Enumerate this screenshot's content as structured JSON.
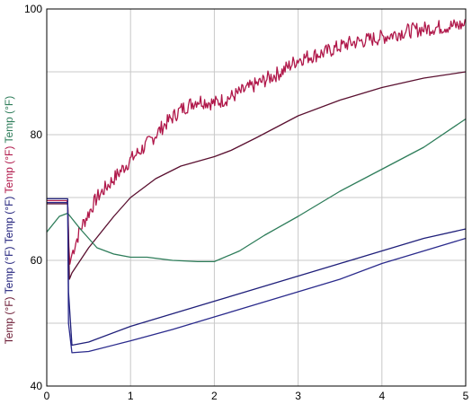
{
  "chart_data": {
    "type": "line",
    "xlim": [
      0,
      5
    ],
    "ylim": [
      40,
      100
    ],
    "x_ticks": [
      "0",
      "1",
      "2",
      "3",
      "4",
      "5"
    ],
    "y_ticks": [
      "40",
      "60",
      "80",
      "100"
    ],
    "grid": true,
    "legend": "none",
    "y_axis_labels": [
      {
        "text": "Temp (°F)",
        "color": "#6b1a33"
      },
      {
        "text": "Temp (°F)",
        "color": "#1f1f7a"
      },
      {
        "text": "Temp (°F)",
        "color": "#1f1f7a"
      },
      {
        "text": "Temp (°F)",
        "color": "#b0184a"
      },
      {
        "text": "Temp (°F)",
        "color": "#2e7d5a"
      }
    ],
    "series": [
      {
        "color": "#b0184a",
        "noisy": true,
        "x": [
          0,
          0.25,
          0.27,
          0.3,
          0.4,
          0.6,
          0.8,
          1.0,
          1.2,
          1.4,
          1.6,
          1.8,
          2.0,
          2.2,
          2.5,
          2.8,
          3.0,
          3.3,
          3.6,
          4.0,
          4.3,
          4.6,
          5.0
        ],
        "y": [
          69.5,
          69.5,
          59.0,
          61.0,
          65.0,
          70.0,
          73.0,
          76.0,
          78.5,
          81.5,
          84.0,
          85.5,
          85.0,
          86.0,
          88.0,
          90.0,
          92.0,
          93.0,
          94.5,
          95.5,
          96.5,
          97.0,
          97.5
        ]
      },
      {
        "color": "#5a1030",
        "noisy": false,
        "x": [
          0,
          0.25,
          0.27,
          0.3,
          0.5,
          0.8,
          1.0,
          1.3,
          1.6,
          2.0,
          2.2,
          2.5,
          3.0,
          3.5,
          4.0,
          4.5,
          5.0
        ],
        "y": [
          69.0,
          69.0,
          57.0,
          58.0,
          62.0,
          67.0,
          70.0,
          73.0,
          75.0,
          76.5,
          77.5,
          79.5,
          83.0,
          85.5,
          87.5,
          89.0,
          90.0
        ]
      },
      {
        "color": "#2e7d5a",
        "noisy": false,
        "x": [
          0,
          0.15,
          0.25,
          0.4,
          0.6,
          0.8,
          1.0,
          1.2,
          1.5,
          1.8,
          2.0,
          2.3,
          2.6,
          3.0,
          3.5,
          4.0,
          4.5,
          5.0
        ],
        "y": [
          64.5,
          67.0,
          67.5,
          65.0,
          62.0,
          61.0,
          60.5,
          60.5,
          60.0,
          59.8,
          59.8,
          61.5,
          64.0,
          67.0,
          71.0,
          74.5,
          78.0,
          82.5
        ]
      },
      {
        "color": "#1f1f7a",
        "noisy": false,
        "x": [
          0,
          0.25,
          0.26,
          0.3,
          0.5,
          1.0,
          1.5,
          2.0,
          2.5,
          3.0,
          3.5,
          4.0,
          4.5,
          5.0
        ],
        "y": [
          69.8,
          69.8,
          55.0,
          46.5,
          47.0,
          49.5,
          51.5,
          53.5,
          55.5,
          57.5,
          59.5,
          61.5,
          63.5,
          65.0
        ]
      },
      {
        "color": "#2a2a8c",
        "noisy": false,
        "x": [
          0,
          0.25,
          0.26,
          0.3,
          0.5,
          1.0,
          1.5,
          2.0,
          2.5,
          3.0,
          3.5,
          4.0,
          4.5,
          5.0
        ],
        "y": [
          69.2,
          69.2,
          50.0,
          45.3,
          45.5,
          47.2,
          49.0,
          51.0,
          53.0,
          55.0,
          57.0,
          59.5,
          61.5,
          63.5
        ]
      }
    ]
  }
}
